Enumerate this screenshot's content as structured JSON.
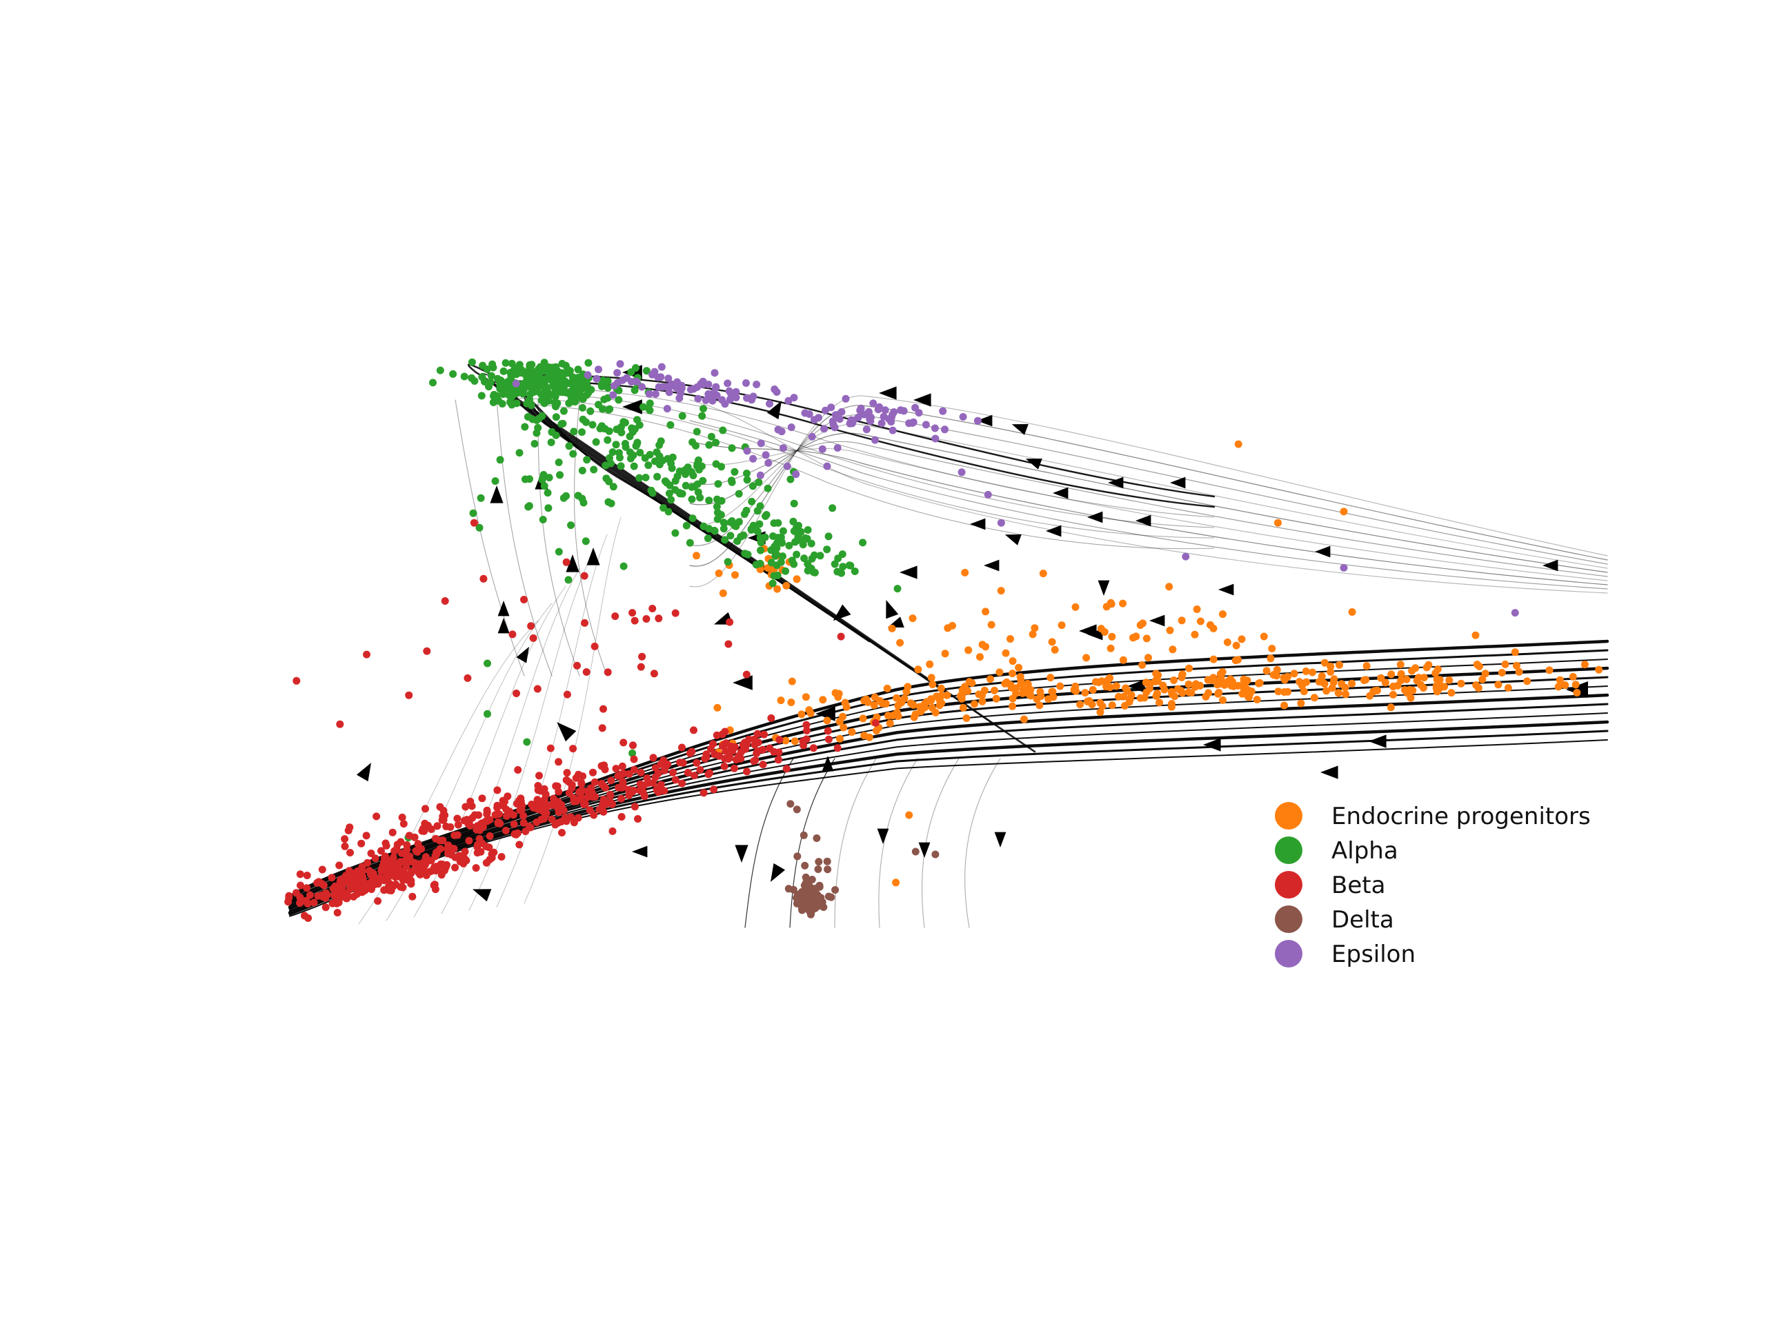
{
  "chart_data": {
    "type": "scatter",
    "title": "",
    "xlabel": "",
    "ylabel": "",
    "axes_visible": false,
    "grid": false,
    "xlim": [
      0,
      100
    ],
    "ylim": [
      0,
      100
    ],
    "legend_position": "lower-right",
    "overlay": "velocity streamlines with direction arrows",
    "stream_color": "#000000",
    "series": [
      {
        "name": "Endocrine progenitors",
        "color": "#ff7f0e",
        "clusters": [
          {
            "cx": 72,
            "cy": 43,
            "sx": 14,
            "sy": 1.8,
            "n": 260,
            "slope": 0.08
          },
          {
            "cx": 48,
            "cy": 40,
            "sx": 6,
            "sy": 2.2,
            "n": 90,
            "slope": 0.45
          },
          {
            "cx": 62,
            "cy": 53,
            "sx": 10,
            "sy": 4,
            "n": 60,
            "slope": 0.1
          },
          {
            "cx": 36,
            "cy": 63,
            "sx": 2,
            "sy": 2,
            "n": 20,
            "slope": 0
          }
        ],
        "points": [
          [
            46,
            8
          ],
          [
            47,
            20
          ],
          [
            72,
            86
          ],
          [
            75,
            72
          ],
          [
            80,
            74
          ],
          [
            88,
            44
          ],
          [
            90,
            52
          ],
          [
            93,
            49
          ]
        ]
      },
      {
        "name": "Alpha",
        "color": "#2ca02c",
        "clusters": [
          {
            "cx": 19,
            "cy": 97,
            "sx": 2.8,
            "sy": 2,
            "n": 230,
            "slope": 0
          },
          {
            "cx": 27,
            "cy": 86,
            "sx": 5,
            "sy": 5,
            "n": 180,
            "slope": -0.9
          },
          {
            "cx": 37,
            "cy": 68,
            "sx": 3.5,
            "sy": 3,
            "n": 110,
            "slope": -0.8
          },
          {
            "cx": 20,
            "cy": 78,
            "sx": 3,
            "sy": 6,
            "n": 40,
            "slope": 0
          }
        ],
        "points": [
          [
            15,
            47
          ],
          [
            15,
            38
          ],
          [
            18,
            33
          ],
          [
            26,
            31
          ],
          [
            9,
            16
          ]
        ]
      },
      {
        "name": "Beta",
        "color": "#d62728",
        "clusters": [
          {
            "cx": 7,
            "cy": 9,
            "sx": 4,
            "sy": 1.8,
            "n": 230,
            "slope": 0.6
          },
          {
            "cx": 20,
            "cy": 22,
            "sx": 8,
            "sy": 2.4,
            "n": 300,
            "slope": 0.55
          },
          {
            "cx": 34,
            "cy": 31,
            "sx": 3,
            "sy": 2,
            "n": 50,
            "slope": 0.3
          },
          {
            "cx": 22,
            "cy": 48,
            "sx": 8,
            "sy": 9,
            "n": 40,
            "slope": 0
          }
        ],
        "points": [
          [
            14,
            72
          ],
          [
            21,
            65
          ],
          [
            28,
            55
          ],
          [
            26,
            56
          ]
        ]
      },
      {
        "name": "Delta",
        "color": "#8c564b",
        "clusters": [
          {
            "cx": 39.5,
            "cy": 5,
            "sx": 0.6,
            "sy": 1.2,
            "n": 90,
            "slope": 0
          },
          {
            "cx": 39.5,
            "cy": 10,
            "sx": 0.8,
            "sy": 2.5,
            "n": 14,
            "slope": 0
          }
        ],
        "points": [
          [
            38,
            22
          ],
          [
            38.5,
            21
          ],
          [
            49,
            13
          ],
          [
            47.5,
            13.5
          ]
        ]
      },
      {
        "name": "Epsilon",
        "color": "#9467bd",
        "clusters": [
          {
            "cx": 30,
            "cy": 96,
            "sx": 4,
            "sy": 1.8,
            "n": 70,
            "slope": -0.2
          },
          {
            "cx": 44,
            "cy": 91,
            "sx": 3.5,
            "sy": 1.5,
            "n": 50,
            "slope": 0
          },
          {
            "cx": 40,
            "cy": 85,
            "sx": 3,
            "sy": 3,
            "n": 20,
            "slope": 0.4
          }
        ],
        "points": [
          [
            49,
            87
          ],
          [
            51,
            81
          ],
          [
            53,
            77
          ],
          [
            54,
            72
          ],
          [
            68,
            66
          ],
          [
            93,
            56
          ],
          [
            80,
            64
          ]
        ]
      }
    ]
  }
}
